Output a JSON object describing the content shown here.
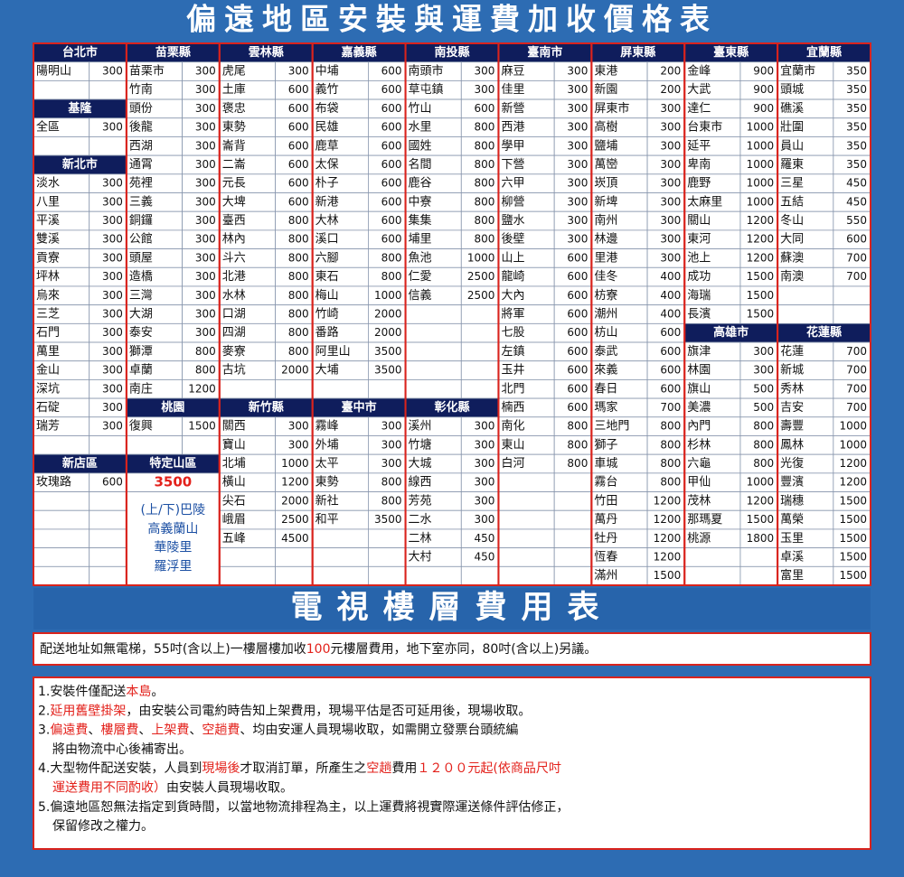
{
  "title": "偏遠地區安裝與運費加收價格表",
  "table": {
    "rows": [
      [
        "台北市",
        "苗栗縣",
        "雲林縣",
        "嘉義縣",
        "南投縣",
        "臺南市",
        "屏東縣",
        "臺東縣",
        "宜蘭縣"
      ],
      [
        [
          "陽明山",
          300
        ],
        [
          "苗栗市",
          300
        ],
        [
          "虎尾",
          300
        ],
        [
          "中埔",
          600
        ],
        [
          "南頭市",
          300
        ],
        [
          "麻豆",
          300
        ],
        [
          "東港",
          200
        ],
        [
          "金峰",
          900
        ],
        [
          "宜蘭市",
          350
        ]
      ],
      [
        null,
        [
          "竹南",
          300
        ],
        [
          "土庫",
          600
        ],
        [
          "義竹",
          600
        ],
        [
          "草屯鎮",
          300
        ],
        [
          "佳里",
          300
        ],
        [
          "新園",
          200
        ],
        [
          "大武",
          900
        ],
        [
          "頭城",
          350
        ]
      ],
      [
        "基隆",
        [
          "頭份",
          300
        ],
        [
          "褒忠",
          600
        ],
        [
          "布袋",
          600
        ],
        [
          "竹山",
          600
        ],
        [
          "新營",
          300
        ],
        [
          "屏東市",
          300
        ],
        [
          "達仁",
          900
        ],
        [
          "礁溪",
          350
        ]
      ],
      [
        [
          "全區",
          300
        ],
        [
          "後龍",
          300
        ],
        [
          "東勢",
          600
        ],
        [
          "民雄",
          600
        ],
        [
          "水里",
          800
        ],
        [
          "西港",
          300
        ],
        [
          "高樹",
          300
        ],
        [
          "台東市",
          1000
        ],
        [
          "壯圍",
          350
        ]
      ],
      [
        null,
        [
          "西湖",
          300
        ],
        [
          "崙背",
          600
        ],
        [
          "鹿草",
          600
        ],
        [
          "國姓",
          800
        ],
        [
          "學甲",
          300
        ],
        [
          "鹽埔",
          300
        ],
        [
          "延平",
          1000
        ],
        [
          "員山",
          350
        ]
      ],
      [
        "新北市",
        [
          "通霄",
          300
        ],
        [
          "二崙",
          600
        ],
        [
          "太保",
          600
        ],
        [
          "名間",
          800
        ],
        [
          "下營",
          300
        ],
        [
          "萬巒",
          300
        ],
        [
          "卑南",
          1000
        ],
        [
          "羅東",
          350
        ]
      ],
      [
        [
          "淡水",
          300
        ],
        [
          "苑裡",
          300
        ],
        [
          "元長",
          600
        ],
        [
          "朴子",
          600
        ],
        [
          "鹿谷",
          800
        ],
        [
          "六甲",
          300
        ],
        [
          "崁頂",
          300
        ],
        [
          "鹿野",
          1000
        ],
        [
          "三星",
          450
        ]
      ],
      [
        [
          "八里",
          300
        ],
        [
          "三義",
          300
        ],
        [
          "大埤",
          600
        ],
        [
          "新港",
          600
        ],
        [
          "中寮",
          800
        ],
        [
          "柳營",
          300
        ],
        [
          "新埤",
          300
        ],
        [
          "太麻里",
          1000
        ],
        [
          "五結",
          450
        ]
      ],
      [
        [
          "平溪",
          300
        ],
        [
          "銅鑼",
          300
        ],
        [
          "臺西",
          800
        ],
        [
          "大林",
          600
        ],
        [
          "集集",
          800
        ],
        [
          "鹽水",
          300
        ],
        [
          "南州",
          300
        ],
        [
          "關山",
          1200
        ],
        [
          "冬山",
          550
        ]
      ],
      [
        [
          "雙溪",
          300
        ],
        [
          "公館",
          300
        ],
        [
          "林內",
          800
        ],
        [
          "溪口",
          600
        ],
        [
          "埔里",
          800
        ],
        [
          "後壁",
          300
        ],
        [
          "林邊",
          300
        ],
        [
          "東河",
          1200
        ],
        [
          "大同",
          600
        ]
      ],
      [
        [
          "貢寮",
          300
        ],
        [
          "頭屋",
          300
        ],
        [
          "斗六",
          800
        ],
        [
          "六腳",
          800
        ],
        [
          "魚池",
          1000
        ],
        [
          "山上",
          600
        ],
        [
          "里港",
          300
        ],
        [
          "池上",
          1200
        ],
        [
          "蘇澳",
          700
        ]
      ],
      [
        [
          "坪林",
          300
        ],
        [
          "造橋",
          300
        ],
        [
          "北港",
          800
        ],
        [
          "東石",
          800
        ],
        [
          "仁愛",
          2500
        ],
        [
          "龍崎",
          600
        ],
        [
          "佳冬",
          400
        ],
        [
          "成功",
          1500
        ],
        [
          "南澳",
          700
        ]
      ],
      [
        [
          "烏來",
          300
        ],
        [
          "三灣",
          300
        ],
        [
          "水林",
          800
        ],
        [
          "梅山",
          1000
        ],
        [
          "信義",
          2500
        ],
        [
          "大內",
          600
        ],
        [
          "枋寮",
          400
        ],
        [
          "海瑞",
          1500
        ],
        null
      ],
      [
        [
          "三芝",
          300
        ],
        [
          "大湖",
          300
        ],
        [
          "口湖",
          800
        ],
        [
          "竹崎",
          2000
        ],
        null,
        [
          "將軍",
          600
        ],
        [
          "潮州",
          400
        ],
        [
          "長濱",
          1500
        ],
        null
      ],
      [
        [
          "石門",
          300
        ],
        [
          "泰安",
          300
        ],
        [
          "四湖",
          800
        ],
        [
          "番路",
          2000
        ],
        null,
        [
          "七股",
          600
        ],
        [
          "枋山",
          600
        ],
        "高雄市",
        "花蓮縣"
      ],
      [
        [
          "萬里",
          300
        ],
        [
          "獅潭",
          800
        ],
        [
          "麥寮",
          800
        ],
        [
          "阿里山",
          3500
        ],
        null,
        [
          "左鎮",
          600
        ],
        [
          "泰武",
          600
        ],
        [
          "旗津",
          300
        ],
        [
          "花蓮",
          700
        ]
      ],
      [
        [
          "金山",
          300
        ],
        [
          "卓蘭",
          800
        ],
        [
          "古坑",
          2000
        ],
        [
          "大埔",
          3500
        ],
        null,
        [
          "玉井",
          600
        ],
        [
          "來義",
          600
        ],
        [
          "林園",
          300
        ],
        [
          "新城",
          700
        ]
      ],
      [
        [
          "深坑",
          300
        ],
        [
          "南庄",
          1200
        ],
        null,
        null,
        null,
        [
          "北門",
          600
        ],
        [
          "春日",
          600
        ],
        [
          "旗山",
          500
        ],
        [
          "秀林",
          700
        ]
      ],
      [
        [
          "石碇",
          300
        ],
        "桃園",
        "新竹縣",
        "臺中市",
        "彰化縣",
        [
          "楠西",
          600
        ],
        [
          "瑪家",
          700
        ],
        [
          "美濃",
          500
        ],
        [
          "吉安",
          700
        ]
      ],
      [
        [
          "瑞芳",
          300
        ],
        [
          "復興",
          1500
        ],
        [
          "關西",
          300
        ],
        [
          "霧峰",
          300
        ],
        [
          "溪州",
          300
        ],
        [
          "南化",
          800
        ],
        [
          "三地門",
          800
        ],
        [
          "內門",
          800
        ],
        [
          "壽豐",
          1000
        ]
      ],
      [
        null,
        null,
        [
          "寶山",
          300
        ],
        [
          "外埔",
          300
        ],
        [
          "竹塘",
          300
        ],
        [
          "東山",
          800
        ],
        [
          "獅子",
          800
        ],
        [
          "杉林",
          800
        ],
        [
          "鳳林",
          1000
        ]
      ],
      [
        "新店區",
        "特定山區",
        [
          "北埔",
          1000
        ],
        [
          "太平",
          300
        ],
        [
          "大城",
          300
        ],
        [
          "白河",
          800
        ],
        [
          "車城",
          800
        ],
        [
          "六龜",
          800
        ],
        [
          "光復",
          1200
        ]
      ],
      [
        [
          "玫瑰路",
          600
        ],
        3500,
        [
          "橫山",
          1200
        ],
        [
          "東勢",
          800
        ],
        [
          "線西",
          300
        ],
        null,
        [
          "霧台",
          800
        ],
        [
          "甲仙",
          1000
        ],
        [
          "豐濱",
          1200
        ]
      ],
      [
        null,
        {
          "lines": [
            "(上/下)巴陵",
            "高義蘭山",
            "華陵里",
            "羅浮里"
          ]
        },
        [
          "尖石",
          2000
        ],
        [
          "新社",
          800
        ],
        [
          "芳苑",
          300
        ],
        null,
        [
          "竹田",
          1200
        ],
        [
          "茂林",
          1200
        ],
        [
          "瑞穗",
          1500
        ]
      ],
      [
        null,
        null,
        [
          "峨眉",
          2500
        ],
        [
          "和平",
          3500
        ],
        [
          "二水",
          300
        ],
        null,
        [
          "萬丹",
          1200
        ],
        [
          "那瑪夏",
          1500
        ],
        [
          "萬榮",
          1500
        ]
      ],
      [
        null,
        null,
        [
          "五峰",
          4500
        ],
        null,
        [
          "二林",
          450
        ],
        null,
        [
          "牡丹",
          1200
        ],
        [
          "桃源",
          1800
        ],
        [
          "玉里",
          1500
        ]
      ],
      [
        null,
        null,
        null,
        null,
        [
          "大村",
          450
        ],
        null,
        [
          "恆春",
          1200
        ],
        null,
        [
          "卓溪",
          1500
        ]
      ],
      [
        null,
        null,
        null,
        null,
        null,
        null,
        [
          "滿州",
          1500
        ],
        null,
        [
          "富里",
          1500
        ]
      ]
    ]
  },
  "floor_fee": {
    "title": "電視樓層費用表",
    "note": [
      "配送地址如無電梯，55吋(含以上)一樓層樓加收",
      {
        "text": "100",
        "color": "#e3211b"
      },
      "元樓層費用，地下室亦同，80吋(含以上)另議。"
    ]
  },
  "notes": [
    [
      [
        "1.安裝件僅配送",
        {
          "text": "本島",
          "color": "#e3211b"
        },
        "。"
      ]
    ],
    [
      [
        "2.",
        {
          "text": "延用舊壁掛架",
          "color": "#e3211b"
        },
        "，由安裝公司電約時告知上架費用，現場平估是否可延用後，現場收取。"
      ]
    ],
    [
      [
        "3.",
        {
          "text": "偏遠費",
          "color": "#e3211b"
        },
        "、",
        {
          "text": "樓層費",
          "color": "#e3211b"
        },
        "、",
        {
          "text": "上架費",
          "color": "#e3211b"
        },
        "、",
        {
          "text": "空趟費",
          "color": "#e3211b"
        },
        "、均由安運人員現場收取，如需開立發票台頭統編"
      ],
      [
        "將由物流中心後補寄出。"
      ]
    ],
    [
      [
        "4.大型物件配送安裝，人員到",
        {
          "text": "現場後",
          "color": "#e3211b"
        },
        "才取消訂單，所產生之",
        {
          "text": "空趟",
          "color": "#e3211b"
        },
        "費用",
        {
          "text": "１２００元起(依商品尺吋",
          "color": "#e3211b"
        }
      ],
      [
        {
          "text": "運送費用不同酌收）",
          "color": "#e3211b"
        },
        "由安裝人員現場收取。"
      ]
    ],
    [
      [
        "5.偏遠地區恕無法指定到貨時間，以當地物流排程為主，以上運費將視實際運送條件評估修正，"
      ],
      [
        "保留修改之權力。"
      ]
    ]
  ]
}
